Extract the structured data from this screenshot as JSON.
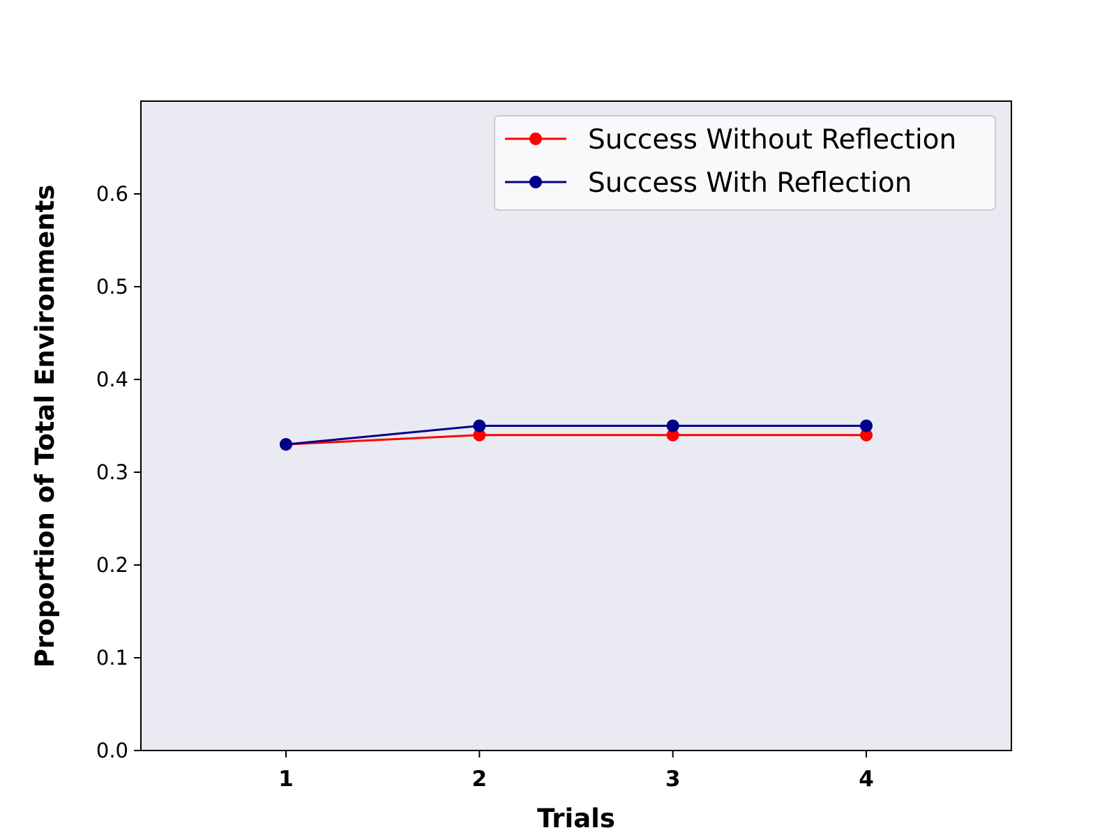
{
  "chart_data": {
    "type": "line",
    "title": "",
    "xlabel": "Trials",
    "ylabel": "Proportion of Total Environments",
    "x": [
      1,
      2,
      3,
      4
    ],
    "x_tick_labels": [
      "1",
      "2",
      "3",
      "4"
    ],
    "xlim": [
      0.25,
      4.75
    ],
    "ylim": [
      0.0,
      0.7
    ],
    "y_ticks": [
      0.0,
      0.1,
      0.2,
      0.3,
      0.4,
      0.5,
      0.6
    ],
    "y_tick_labels": [
      "0.0",
      "0.1",
      "0.2",
      "0.3",
      "0.4",
      "0.5",
      "0.6"
    ],
    "grid": false,
    "legend_position": "top-right",
    "background_color": "#eaeaf2",
    "series": [
      {
        "name": "Success Without Reflection",
        "color": "#ff0000",
        "marker": "circle",
        "values": [
          0.33,
          0.34,
          0.34,
          0.34
        ]
      },
      {
        "name": "Success With Reflection",
        "color": "#00008b",
        "marker": "circle",
        "values": [
          0.33,
          0.35,
          0.35,
          0.35
        ]
      }
    ]
  }
}
